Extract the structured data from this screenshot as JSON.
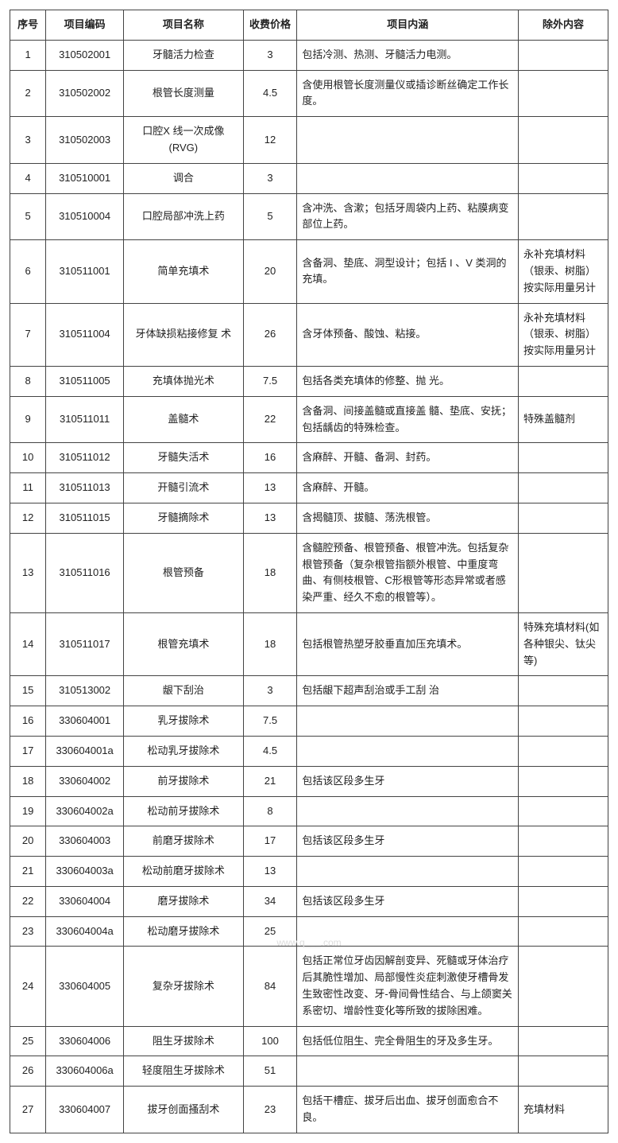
{
  "table": {
    "type": "table",
    "background_color": "#ffffff",
    "border_color": "#444444",
    "text_color": "#222222",
    "header_fontsize": 13,
    "cell_fontsize": 13,
    "column_widths_pct": [
      6,
      13,
      20,
      9,
      37,
      15
    ],
    "columns": [
      "序号",
      "项目编码",
      "项目名称",
      "收费价格",
      "项目内涵",
      "除外内容"
    ],
    "align": [
      "center",
      "center",
      "center",
      "center",
      "left",
      "left"
    ],
    "rows": [
      [
        "1",
        "310502001",
        "牙髓活力检查",
        "3",
        "包括冷测、热测、牙髓活力电测。",
        ""
      ],
      [
        "2",
        "310502002",
        "根管长度测量",
        "4.5",
        "含使用根管长度测量仪或插诊断丝确定工作长度。",
        ""
      ],
      [
        "3",
        "310502003",
        "口腔X 线一次成像 (RVG)",
        "12",
        "",
        ""
      ],
      [
        "4",
        "310510001",
        "调合",
        "3",
        "",
        ""
      ],
      [
        "5",
        "310510004",
        "口腔局部冲洗上药",
        "5",
        "含冲洗、含漱；包括牙周袋内上药、粘膜病变部位上药。",
        ""
      ],
      [
        "6",
        "310511001",
        "简单充填术",
        "20",
        "含备洞、垫底、洞型设计；包括 I 、V 类洞的充填。",
        "永补充填材料（银汞、树脂）按实际用量另计"
      ],
      [
        "7",
        "310511004",
        "牙体缺损粘接修复 术",
        "26",
        "含牙体预备、酸蚀、粘接。",
        "永补充填材料（银汞、树脂）按实际用量另计"
      ],
      [
        "8",
        "310511005",
        "充填体抛光术",
        "7.5",
        "包括各类充填体的修整、抛 光。",
        ""
      ],
      [
        "9",
        "310511011",
        "盖髓术",
        "22",
        "含备洞、间接盖髓或直接盖 髓、垫底、安抚；包括龋齿的特殊检查。",
        "特殊盖髓剂"
      ],
      [
        "10",
        "310511012",
        "牙髓失活术",
        "16",
        "含麻醉、开髓、备洞、封药。",
        ""
      ],
      [
        "11",
        "310511013",
        "开髓引流术",
        "13",
        "含麻醉、开髓。",
        ""
      ],
      [
        "12",
        "310511015",
        "牙髓摘除术",
        "13",
        "含揭髓顶、拔髓、荡洗根管。",
        ""
      ],
      [
        "13",
        "310511016",
        "根管预备",
        "18",
        "含髓腔预备、根管预备、根管冲洗。包括复杂根管预备（复杂根管指额外根管、中重度弯曲、有侧枝根管、C形根管等形态异常或者感染严重、经久不愈的根管等）。",
        ""
      ],
      [
        "14",
        "310511017",
        "根管充填术",
        "18",
        "包括根管热塑牙胶垂直加压充填术。",
        "特殊充填材料(如各种银尖、钛尖等)"
      ],
      [
        "15",
        "310513002",
        "龈下刮治",
        "3",
        "包括龈下超声刮治或手工刮 治",
        ""
      ],
      [
        "16",
        "330604001",
        "乳牙拔除术",
        "7.5",
        "",
        ""
      ],
      [
        "17",
        "330604001a",
        "松动乳牙拔除术",
        "4.5",
        "",
        ""
      ],
      [
        "18",
        "330604002",
        "前牙拔除术",
        "21",
        "包括该区段多生牙",
        ""
      ],
      [
        "19",
        "330604002a",
        "松动前牙拔除术",
        "8",
        "",
        ""
      ],
      [
        "20",
        "330604003",
        "前磨牙拔除术",
        "17",
        "包括该区段多生牙",
        ""
      ],
      [
        "21",
        "330604003a",
        "松动前磨牙拔除术",
        "13",
        "",
        ""
      ],
      [
        "22",
        "330604004",
        "磨牙拔除术",
        "34",
        "包括该区段多生牙",
        ""
      ],
      [
        "23",
        "330604004a",
        "松动磨牙拔除术",
        "25",
        "",
        ""
      ],
      [
        "24",
        "330604005",
        "复杂牙拔除术",
        "84",
        "包括正常位牙齿因解剖变异、死髓或牙体治疗后其脆性增加、局部慢性炎症刺激使牙槽骨发生致密性改变、牙-骨间骨性结合、与上颌窦关系密切、增龄性变化等所致的拔除困难。",
        ""
      ],
      [
        "25",
        "330604006",
        "阻生牙拔除术",
        "100",
        "包括低位阻生、完全骨阻生的牙及多生牙。",
        ""
      ],
      [
        "26",
        "330604006a",
        "轻度阻生牙拔除术",
        "51",
        "",
        ""
      ],
      [
        "27",
        "330604007",
        "拔牙创面搔刮术",
        "23",
        "包括干槽症、拔牙后出血、拔牙创面愈合不良。",
        "充填材料"
      ]
    ]
  },
  "watermark": "www.q___.com"
}
